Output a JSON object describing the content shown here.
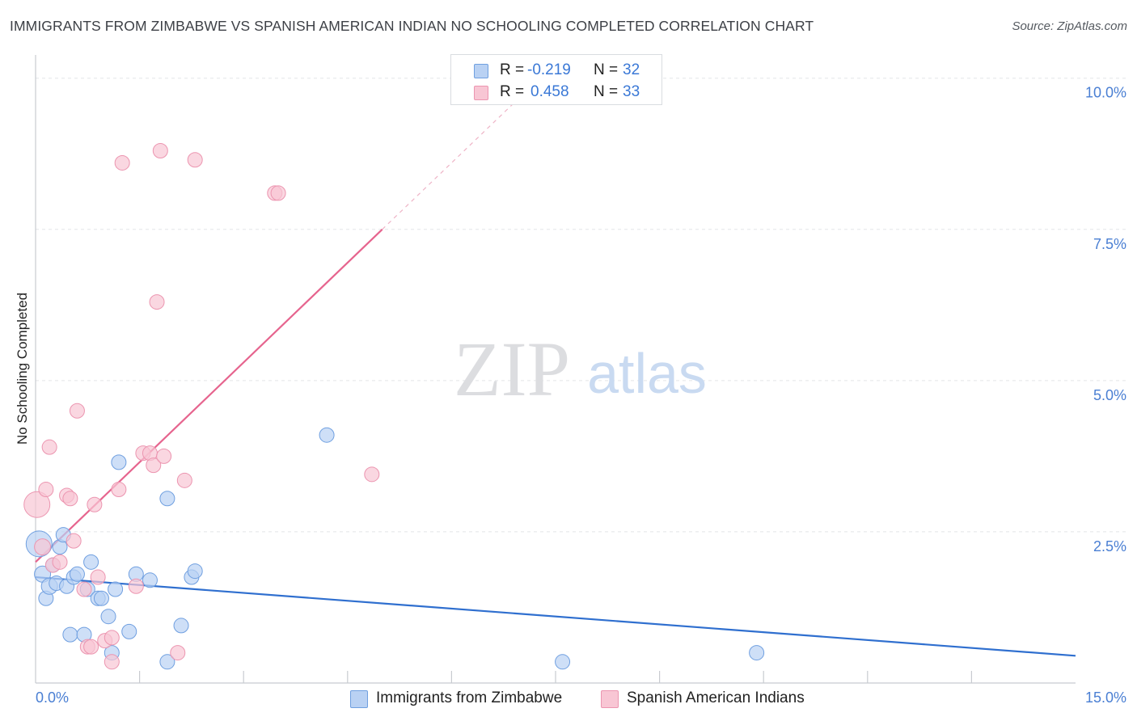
{
  "header": {
    "title": "IMMIGRANTS FROM ZIMBABWE VS SPANISH AMERICAN INDIAN NO SCHOOLING COMPLETED CORRELATION CHART",
    "source": "Source: ZipAtlas.com"
  },
  "legend": {
    "rows": [
      {
        "r_label": "R =",
        "r_value": "-0.219",
        "n_label": "N =",
        "n_value": "32"
      },
      {
        "r_label": "R =",
        "r_value": "0.458",
        "n_label": "N =",
        "n_value": "33"
      }
    ]
  },
  "watermark": {
    "zip": "ZIP",
    "atlas": "atlas"
  },
  "colors": {
    "blue_fill": "#b9d1f3",
    "blue_stroke": "#6f9fe0",
    "blue_line": "#2f6fcf",
    "pink_fill": "#f8c6d4",
    "pink_stroke": "#ec95b0",
    "pink_line": "#e6648e",
    "grid": "#e3e5e8",
    "tick_text": "#4a7fd3"
  },
  "chart_data": {
    "type": "scatter",
    "title": "IMMIGRANTS FROM ZIMBABWE VS SPANISH AMERICAN INDIAN NO SCHOOLING COMPLETED CORRELATION CHART",
    "xlabel": "",
    "ylabel": "No Schooling Completed",
    "xlim": [
      0,
      15
    ],
    "ylim": [
      0,
      10.25
    ],
    "x_tick_labels": [
      {
        "value": 0,
        "label": "0.0%"
      },
      {
        "value": 15,
        "label": "15.0%"
      }
    ],
    "y_ticks": [
      {
        "value": 2.5,
        "label": "2.5%"
      },
      {
        "value": 5.0,
        "label": "5.0%"
      },
      {
        "value": 7.5,
        "label": "7.5%"
      },
      {
        "value": 10.0,
        "label": "10.0%"
      }
    ],
    "x_minor_ticks": [
      1.5,
      3,
      4.5,
      6,
      7.5,
      9,
      10.5,
      12,
      13.5
    ],
    "series": [
      {
        "name": "Immigrants from Zimbabwe",
        "color": "blue",
        "r": -0.219,
        "n": 32,
        "points": [
          [
            0.05,
            2.3,
            16
          ],
          [
            0.1,
            1.8,
            10
          ],
          [
            0.15,
            1.4,
            9
          ],
          [
            0.2,
            1.6,
            10
          ],
          [
            0.25,
            1.95,
            9
          ],
          [
            0.3,
            1.65,
            9
          ],
          [
            0.35,
            2.25,
            9
          ],
          [
            0.4,
            2.45,
            9
          ],
          [
            0.45,
            1.6,
            9
          ],
          [
            0.5,
            0.8,
            9
          ],
          [
            0.55,
            1.75,
            9
          ],
          [
            0.6,
            1.8,
            9
          ],
          [
            0.7,
            0.8,
            9
          ],
          [
            0.75,
            1.55,
            9
          ],
          [
            0.8,
            2.0,
            9
          ],
          [
            0.9,
            1.4,
            9
          ],
          [
            0.95,
            1.4,
            9
          ],
          [
            1.05,
            1.1,
            9
          ],
          [
            1.1,
            0.5,
            9
          ],
          [
            1.15,
            1.55,
            9
          ],
          [
            1.2,
            3.65,
            9
          ],
          [
            1.35,
            0.85,
            9
          ],
          [
            1.45,
            1.8,
            9
          ],
          [
            1.65,
            1.7,
            9
          ],
          [
            1.9,
            0.35,
            9
          ],
          [
            1.9,
            3.05,
            9
          ],
          [
            2.1,
            0.95,
            9
          ],
          [
            2.25,
            1.75,
            9
          ],
          [
            2.3,
            1.85,
            9
          ],
          [
            4.2,
            4.1,
            9
          ],
          [
            7.6,
            0.35,
            9
          ],
          [
            10.4,
            0.5,
            9
          ]
        ],
        "trend": {
          "x": [
            0,
            15
          ],
          "y": [
            1.75,
            0.45
          ]
        }
      },
      {
        "name": "Spanish American Indians",
        "color": "pink",
        "r": 0.458,
        "n": 33,
        "points": [
          [
            0.02,
            2.95,
            16
          ],
          [
            0.1,
            2.25,
            10
          ],
          [
            0.15,
            3.2,
            9
          ],
          [
            0.2,
            3.9,
            9
          ],
          [
            0.25,
            1.95,
            9
          ],
          [
            0.35,
            2.0,
            9
          ],
          [
            0.45,
            3.1,
            9
          ],
          [
            0.5,
            3.05,
            9
          ],
          [
            0.55,
            2.35,
            9
          ],
          [
            0.6,
            4.5,
            9
          ],
          [
            0.7,
            1.55,
            9
          ],
          [
            0.75,
            0.6,
            9
          ],
          [
            0.8,
            0.6,
            9
          ],
          [
            0.85,
            2.95,
            9
          ],
          [
            0.9,
            1.75,
            9
          ],
          [
            1.0,
            0.7,
            9
          ],
          [
            1.1,
            0.75,
            9
          ],
          [
            1.1,
            0.35,
            9
          ],
          [
            1.2,
            3.2,
            9
          ],
          [
            1.25,
            8.6,
            9
          ],
          [
            1.45,
            1.6,
            9
          ],
          [
            1.55,
            3.8,
            9
          ],
          [
            1.65,
            3.8,
            9
          ],
          [
            1.7,
            3.6,
            9
          ],
          [
            1.75,
            6.3,
            9
          ],
          [
            1.8,
            8.8,
            9
          ],
          [
            1.85,
            3.75,
            9
          ],
          [
            2.05,
            0.5,
            9
          ],
          [
            2.15,
            3.35,
            9
          ],
          [
            2.3,
            8.65,
            9
          ],
          [
            3.45,
            8.1,
            9
          ],
          [
            3.5,
            8.1,
            9
          ],
          [
            4.85,
            3.45,
            9
          ]
        ],
        "trend": {
          "x": [
            0,
            5.0
          ],
          "y": [
            2.0,
            7.5
          ]
        },
        "trend_extension": {
          "x": [
            5.0,
            7.5
          ],
          "y": [
            7.5,
            10.25
          ]
        }
      }
    ]
  }
}
